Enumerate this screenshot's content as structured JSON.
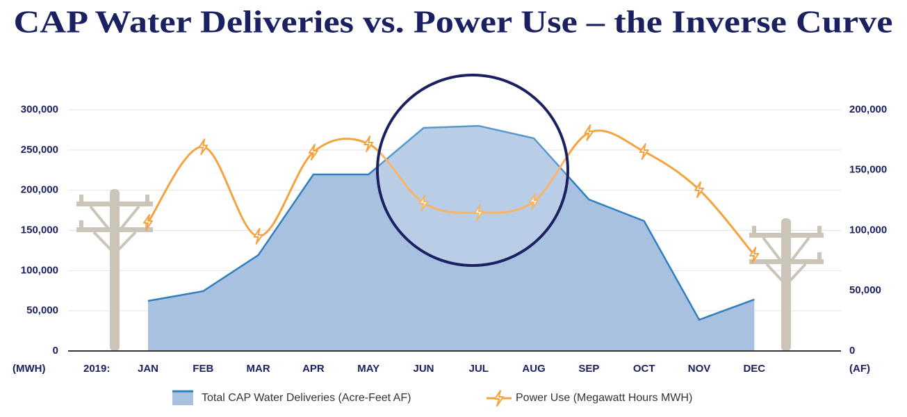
{
  "chart_data": {
    "type": "combo",
    "title": "CAP Water Deliveries vs. Power Use – the Inverse Curve",
    "y_label": "(MWH)",
    "y2_label": "(AF)",
    "x_prefix": "2019:",
    "categories": [
      "JAN",
      "FEB",
      "MAR",
      "APR",
      "MAY",
      "JUN",
      "JUL",
      "AUG",
      "SEP",
      "OCT",
      "NOV",
      "DEC"
    ],
    "series": [
      {
        "name": "Total CAP Water Deliveries (Acre-Feet AF)",
        "type": "area",
        "axis": "y2",
        "color": "#2f7fbf",
        "values": [
          41500,
          49600,
          79500,
          146400,
          146400,
          185000,
          186700,
          176400,
          125600,
          107800,
          25900,
          42700
        ]
      },
      {
        "name": "Power Use (Megawatt Hours MWH)",
        "type": "line",
        "axis": "y",
        "color": "#f5a340",
        "values": [
          160000,
          254000,
          142700,
          247300,
          257600,
          184100,
          172000,
          185900,
          271500,
          248100,
          200600,
          119300
        ]
      }
    ],
    "ylim": [
      0,
      300000
    ],
    "yticks": [
      0,
      {
        "value": 50000,
        "label": "50,000"
      },
      {
        "value": 100000,
        "label": "100,000"
      },
      {
        "value": 150000,
        "label": "150,000"
      },
      {
        "value": 200000,
        "label": "200,000"
      },
      {
        "value": 250000,
        "label": "250,000"
      },
      {
        "value": 300000,
        "label": "300,000"
      }
    ],
    "y2lim": [
      0,
      200000
    ],
    "y2ticks": [
      0,
      {
        "value": 50000,
        "label": "50,000"
      },
      {
        "value": 100000,
        "label": "100,000"
      },
      {
        "value": 150000,
        "label": "150,000"
      },
      {
        "value": 200000,
        "label": "200,000"
      }
    ],
    "grid": true
  }
}
